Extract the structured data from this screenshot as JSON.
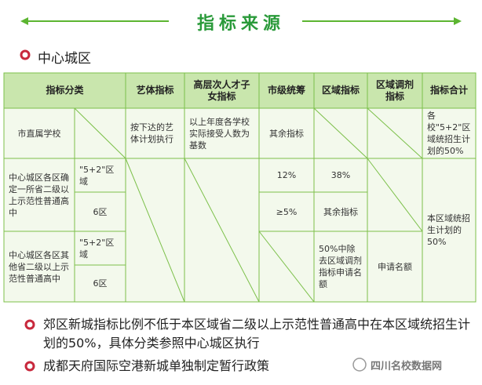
{
  "header": {
    "title": "指标来源"
  },
  "section": {
    "title": "中心城区"
  },
  "table": {
    "headers": [
      "指标分类",
      "艺体指标",
      "高层次人才子女指标",
      "市级统筹",
      "区域指标",
      "区域调剂指标",
      "指标合计"
    ],
    "cells": [
      "市直属学校",
      "按下达的艺体计划执行",
      "以上年度各学校实际接受人数为基数",
      "其余指标",
      "各校\"5+2\"区域统招生计划的50%",
      "中心城区各区确定一所省二级以上示范性普通高中",
      "\"5+2\"区域",
      "6区",
      "12%",
      "38%",
      "≥5%",
      "其余指标",
      "本区域统招生计划的50%",
      "中心城区各区其他省二级以上示范性普通高中",
      "\"5+2\"区域",
      "6区",
      "50%中除去区域调剂指标申请名额",
      "申请名额"
    ]
  },
  "notes": [
    "郊区新城指标比例不低于本区域省二级以上示范性普通高中在本区域统招生计划的50%，具体分类参照中心城区执行",
    "成都天府国际空港新城单独制定暂行政策"
  ],
  "watermark": "四川名校数据网"
}
